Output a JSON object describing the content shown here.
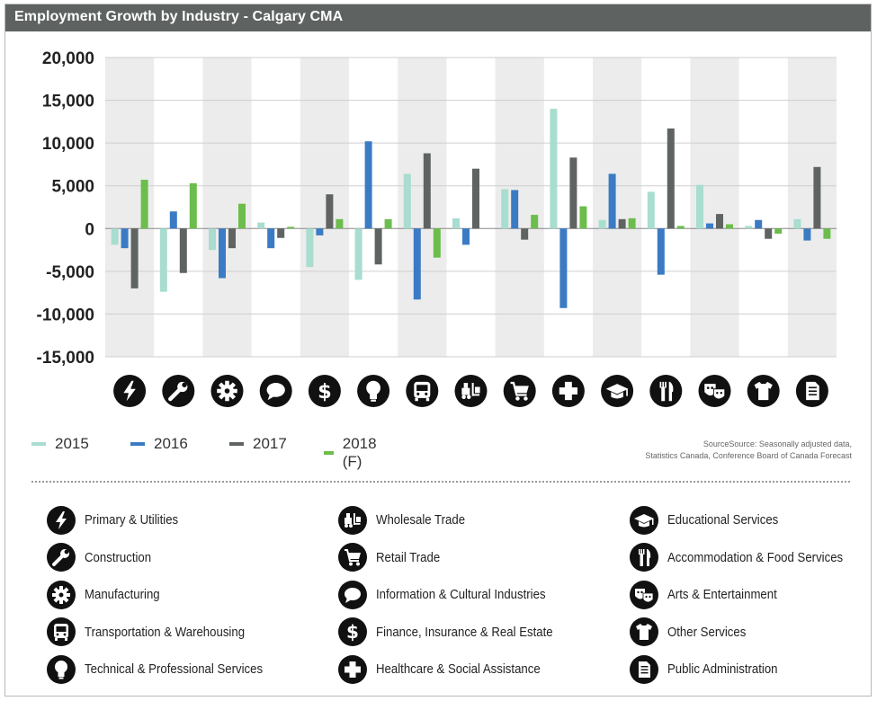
{
  "title": "Employment Growth by Industry - Calgary CMA",
  "source": {
    "line1": "SourceSource: Seasonally adjusted data,",
    "line2": "Statistics Canada, Conference Board of Canada Forecast"
  },
  "colors": {
    "2015": "#a8ddd0",
    "2016": "#3a7bc4",
    "2017": "#5f6361",
    "2018": "#6cbd4b",
    "band": "#ececec",
    "icon_bg": "#111111"
  },
  "chart_data": {
    "type": "bar",
    "title": "Employment Growth by Industry - Calgary CMA",
    "xlabel": "",
    "ylabel": "",
    "ylim": [
      -15000,
      20000
    ],
    "yticks": [
      20000,
      15000,
      10000,
      5000,
      0,
      -5000,
      -10000,
      -15000
    ],
    "ytick_labels": [
      "20,000",
      "15,000",
      "10,000",
      "5,000",
      "0",
      "-5,000",
      "-10,000",
      "-15,000"
    ],
    "grid": true,
    "legend": "bottom-left",
    "categories": [
      "Primary & Utilities",
      "Construction",
      "Manufacturing",
      "Information & Cultural Industries",
      "Finance, Insurance & Real Estate",
      "Technical & Professional Services",
      "Transportation & Warehousing",
      "Wholesale Trade",
      "Retail Trade",
      "Healthcare & Social Assistance",
      "Educational Services",
      "Accommodation & Food Services",
      "Arts & Entertainment",
      "Other Services",
      "Public Administration"
    ],
    "category_icons": [
      "lightning-icon",
      "wrench-icon",
      "gear-icon",
      "speech-bubble-icon",
      "dollar-icon",
      "lightbulb-icon",
      "bus-icon",
      "forklift-icon",
      "shopping-cart-icon",
      "medical-cross-icon",
      "graduation-cap-icon",
      "fork-knife-icon",
      "theater-masks-icon",
      "shirt-icon",
      "document-icon"
    ],
    "series": [
      {
        "name": "2015",
        "color": "#a8ddd0",
        "values": [
          -1900,
          -7400,
          -2500,
          700,
          -4500,
          -6000,
          6400,
          1200,
          4600,
          14000,
          1000,
          4300,
          5100,
          300,
          1100
        ]
      },
      {
        "name": "2016",
        "color": "#3a7bc4",
        "values": [
          -2300,
          2000,
          -5800,
          -2300,
          -800,
          10200,
          -8300,
          -1900,
          4500,
          -9300,
          6400,
          -5400,
          600,
          1000,
          -1400
        ]
      },
      {
        "name": "2017",
        "color": "#5f6361",
        "values": [
          -7000,
          -5200,
          -2300,
          -1100,
          4000,
          -4200,
          8800,
          7000,
          -1300,
          8300,
          1100,
          11700,
          1700,
          -1200,
          7200
        ]
      },
      {
        "name": "2018 (F)",
        "color": "#6cbd4b",
        "values": [
          5700,
          5300,
          2900,
          200,
          1100,
          1100,
          -3400,
          0,
          1600,
          2600,
          1200,
          300,
          500,
          -600,
          -1200
        ]
      }
    ]
  },
  "legend": {
    "items": [
      {
        "label": "2015",
        "color": "#a8ddd0"
      },
      {
        "label": "2016",
        "color": "#3a7bc4"
      },
      {
        "label": "2017",
        "color": "#5f6361"
      },
      {
        "label": "2018 (F)",
        "color": "#6cbd4b"
      }
    ]
  },
  "key": {
    "columns": [
      [
        {
          "icon": "lightning-icon",
          "label": "Primary & Utilities"
        },
        {
          "icon": "wrench-icon",
          "label": "Construction"
        },
        {
          "icon": "gear-icon",
          "label": "Manufacturing"
        },
        {
          "icon": "bus-icon",
          "label": "Transportation & Warehousing"
        },
        {
          "icon": "lightbulb-icon",
          "label": "Technical & Professional Services"
        }
      ],
      [
        {
          "icon": "forklift-icon",
          "label": "Wholesale Trade"
        },
        {
          "icon": "shopping-cart-icon",
          "label": "Retail Trade"
        },
        {
          "icon": "speech-bubble-icon",
          "label": "Information & Cultural Industries"
        },
        {
          "icon": "dollar-icon",
          "label": "Finance, Insurance & Real Estate"
        },
        {
          "icon": "medical-cross-icon",
          "label": "Healthcare & Social Assistance"
        }
      ],
      [
        {
          "icon": "graduation-cap-icon",
          "label": "Educational Services"
        },
        {
          "icon": "fork-knife-icon",
          "label": "Accommodation & Food Services"
        },
        {
          "icon": "theater-masks-icon",
          "label": "Arts & Entertainment"
        },
        {
          "icon": "shirt-icon",
          "label": "Other Services"
        },
        {
          "icon": "document-icon",
          "label": "Public Administration"
        }
      ]
    ]
  }
}
